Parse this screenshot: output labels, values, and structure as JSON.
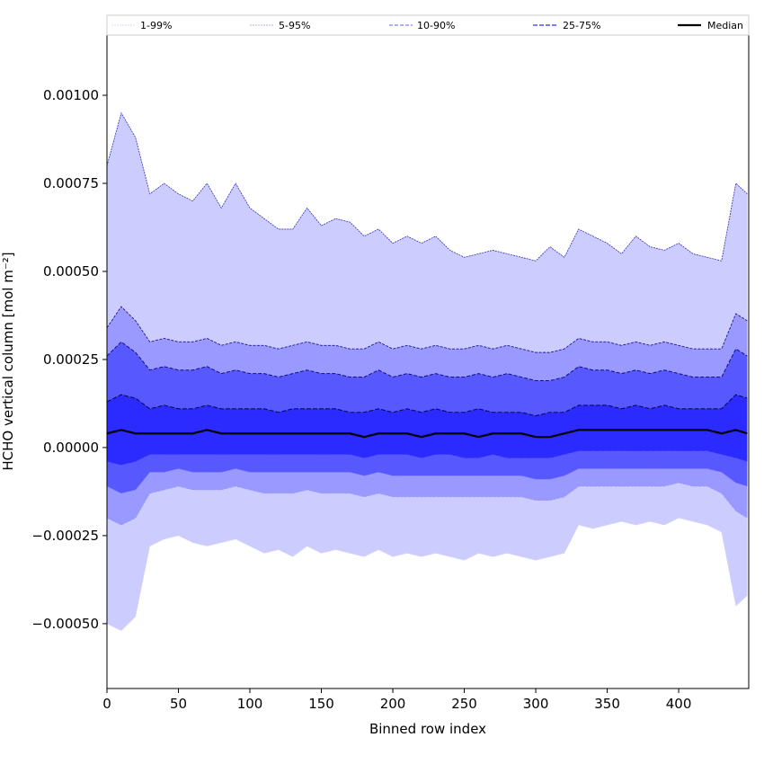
{
  "chart_data": {
    "type": "area",
    "title": "",
    "xlabel": "Binned row index",
    "ylabel": "HCHO vertical column [mol m⁻²]",
    "xlim": [
      0,
      449
    ],
    "ylim": [
      -0.000684,
      0.001171
    ],
    "xticks": [
      0,
      50,
      100,
      150,
      200,
      250,
      300,
      350,
      400
    ],
    "xtick_labels": [
      "0",
      "50",
      "100",
      "150",
      "200",
      "250",
      "300",
      "350",
      "400"
    ],
    "yticks": [
      -0.0005,
      -0.00025,
      0,
      0.00025,
      0.0005,
      0.00075,
      0.001
    ],
    "ytick_labels": [
      "−0.00050",
      "−0.00025",
      "0.00000",
      "0.00025",
      "0.00050",
      "0.00075",
      "0.00100"
    ],
    "legend": {
      "placement": "top",
      "entries": [
        {
          "label": "1-99%",
          "color": "#d8d8f4"
        },
        {
          "label": "5-95%",
          "color": "#b0b0e8"
        },
        {
          "label": "10-90%",
          "color": "#8080ee"
        },
        {
          "label": "25-75%",
          "color": "#5050f0"
        },
        {
          "label": "Median",
          "color": "#000000"
        }
      ]
    },
    "bands": [
      {
        "name": "1-99%",
        "lower": "p1",
        "upper": "p99",
        "fill": "#ccccff"
      },
      {
        "name": "5-95%",
        "lower": "p5",
        "upper": "p95",
        "fill": "#9999ff"
      },
      {
        "name": "10-90%",
        "lower": "p10",
        "upper": "p90",
        "fill": "#5858ff"
      },
      {
        "name": "25-75%",
        "lower": "p25",
        "upper": "p75",
        "fill": "#2b2bff"
      }
    ],
    "x": [
      0,
      10,
      20,
      30,
      40,
      50,
      60,
      70,
      80,
      90,
      100,
      110,
      120,
      130,
      140,
      150,
      160,
      170,
      180,
      190,
      200,
      210,
      220,
      230,
      240,
      250,
      260,
      270,
      280,
      290,
      300,
      310,
      320,
      330,
      340,
      350,
      360,
      370,
      380,
      390,
      400,
      410,
      420,
      430,
      440,
      448
    ],
    "series": {
      "p99": [
        0.0008,
        0.00095,
        0.00088,
        0.00072,
        0.00075,
        0.00072,
        0.0007,
        0.00075,
        0.00068,
        0.00075,
        0.00068,
        0.00065,
        0.00062,
        0.00062,
        0.00068,
        0.00063,
        0.00065,
        0.00064,
        0.0006,
        0.00062,
        0.00058,
        0.0006,
        0.00058,
        0.0006,
        0.00056,
        0.00054,
        0.00055,
        0.00056,
        0.00055,
        0.00054,
        0.00053,
        0.00057,
        0.00054,
        0.00062,
        0.0006,
        0.00058,
        0.00055,
        0.0006,
        0.00057,
        0.00056,
        0.00058,
        0.00055,
        0.00054,
        0.00053,
        0.00075,
        0.00072
      ],
      "p95": [
        0.00034,
        0.0004,
        0.00036,
        0.0003,
        0.00031,
        0.0003,
        0.0003,
        0.00031,
        0.00029,
        0.0003,
        0.00029,
        0.00029,
        0.00028,
        0.00029,
        0.0003,
        0.00029,
        0.00029,
        0.00028,
        0.00028,
        0.0003,
        0.00028,
        0.00029,
        0.00028,
        0.00029,
        0.00028,
        0.00028,
        0.00029,
        0.00028,
        0.00029,
        0.00028,
        0.00027,
        0.00027,
        0.00028,
        0.00031,
        0.0003,
        0.0003,
        0.00029,
        0.0003,
        0.00029,
        0.0003,
        0.00029,
        0.00028,
        0.00028,
        0.00028,
        0.00038,
        0.00036
      ],
      "p90": [
        0.00026,
        0.0003,
        0.00027,
        0.00022,
        0.00023,
        0.00022,
        0.00022,
        0.00023,
        0.00021,
        0.00022,
        0.00021,
        0.00021,
        0.0002,
        0.00021,
        0.00022,
        0.00021,
        0.00021,
        0.0002,
        0.0002,
        0.00022,
        0.0002,
        0.00021,
        0.0002,
        0.00021,
        0.0002,
        0.0002,
        0.00021,
        0.0002,
        0.00021,
        0.0002,
        0.00019,
        0.00019,
        0.0002,
        0.00023,
        0.00022,
        0.00022,
        0.00021,
        0.00022,
        0.00021,
        0.00022,
        0.00021,
        0.0002,
        0.0002,
        0.0002,
        0.00028,
        0.00026
      ],
      "p75": [
        0.00013,
        0.00015,
        0.00014,
        0.00011,
        0.00012,
        0.00011,
        0.00011,
        0.00012,
        0.00011,
        0.00011,
        0.00011,
        0.00011,
        0.0001,
        0.00011,
        0.00011,
        0.00011,
        0.00011,
        0.0001,
        0.0001,
        0.00011,
        0.0001,
        0.00011,
        0.0001,
        0.00011,
        0.0001,
        0.0001,
        0.00011,
        0.0001,
        0.0001,
        0.0001,
        9e-05,
        0.0001,
        0.0001,
        0.00012,
        0.00012,
        0.00012,
        0.00011,
        0.00012,
        0.00011,
        0.00012,
        0.00011,
        0.00011,
        0.00011,
        0.00011,
        0.00015,
        0.00014
      ],
      "median": [
        4e-05,
        5e-05,
        4e-05,
        4e-05,
        4e-05,
        4e-05,
        4e-05,
        5e-05,
        4e-05,
        4e-05,
        4e-05,
        4e-05,
        4e-05,
        4e-05,
        4e-05,
        4e-05,
        4e-05,
        4e-05,
        3e-05,
        4e-05,
        4e-05,
        4e-05,
        3e-05,
        4e-05,
        4e-05,
        4e-05,
        3e-05,
        4e-05,
        4e-05,
        4e-05,
        3e-05,
        3e-05,
        4e-05,
        5e-05,
        5e-05,
        5e-05,
        5e-05,
        5e-05,
        5e-05,
        5e-05,
        5e-05,
        5e-05,
        5e-05,
        4e-05,
        5e-05,
        4e-05
      ],
      "p25": [
        -4e-05,
        -5e-05,
        -4e-05,
        -2e-05,
        -2e-05,
        -2e-05,
        -2e-05,
        -2e-05,
        -2e-05,
        -2e-05,
        -2e-05,
        -2e-05,
        -2e-05,
        -2e-05,
        -2e-05,
        -2e-05,
        -2e-05,
        -2e-05,
        -3e-05,
        -2e-05,
        -2e-05,
        -2e-05,
        -3e-05,
        -2e-05,
        -2e-05,
        -3e-05,
        -3e-05,
        -2e-05,
        -3e-05,
        -3e-05,
        -3e-05,
        -3e-05,
        -2e-05,
        -1e-05,
        -1e-05,
        -1e-05,
        -1e-05,
        -1e-05,
        -1e-05,
        -1e-05,
        -1e-05,
        -1e-05,
        -1e-05,
        -2e-05,
        -3e-05,
        -4e-05
      ],
      "p10": [
        -0.00011,
        -0.00013,
        -0.00012,
        -7e-05,
        -7e-05,
        -6e-05,
        -7e-05,
        -7e-05,
        -7e-05,
        -6e-05,
        -7e-05,
        -7e-05,
        -7e-05,
        -7e-05,
        -7e-05,
        -7e-05,
        -7e-05,
        -7e-05,
        -8e-05,
        -7e-05,
        -8e-05,
        -8e-05,
        -8e-05,
        -8e-05,
        -8e-05,
        -8e-05,
        -8e-05,
        -8e-05,
        -8e-05,
        -8e-05,
        -9e-05,
        -9e-05,
        -8e-05,
        -6e-05,
        -6e-05,
        -6e-05,
        -6e-05,
        -6e-05,
        -6e-05,
        -6e-05,
        -6e-05,
        -6e-05,
        -6e-05,
        -7e-05,
        -0.0001,
        -0.00011
      ],
      "p5": [
        -0.0002,
        -0.00022,
        -0.0002,
        -0.00013,
        -0.00012,
        -0.00011,
        -0.00012,
        -0.00012,
        -0.00012,
        -0.00011,
        -0.00012,
        -0.00013,
        -0.00013,
        -0.00013,
        -0.00012,
        -0.00013,
        -0.00013,
        -0.00013,
        -0.00014,
        -0.00013,
        -0.00014,
        -0.00014,
        -0.00014,
        -0.00014,
        -0.00014,
        -0.00014,
        -0.00014,
        -0.00014,
        -0.00014,
        -0.00014,
        -0.00015,
        -0.00015,
        -0.00014,
        -0.00011,
        -0.00011,
        -0.00011,
        -0.00011,
        -0.00011,
        -0.00011,
        -0.00011,
        -0.0001,
        -0.00011,
        -0.00011,
        -0.00013,
        -0.00018,
        -0.0002
      ],
      "p1": [
        -0.0005,
        -0.00052,
        -0.00048,
        -0.00028,
        -0.00026,
        -0.00025,
        -0.00027,
        -0.00028,
        -0.00027,
        -0.00026,
        -0.00028,
        -0.0003,
        -0.00029,
        -0.00031,
        -0.00028,
        -0.0003,
        -0.00029,
        -0.0003,
        -0.00031,
        -0.00029,
        -0.00031,
        -0.0003,
        -0.00031,
        -0.0003,
        -0.00031,
        -0.00032,
        -0.0003,
        -0.00031,
        -0.0003,
        -0.00031,
        -0.00032,
        -0.00031,
        -0.0003,
        -0.00022,
        -0.00023,
        -0.00022,
        -0.00021,
        -0.00022,
        -0.00021,
        -0.00022,
        -0.0002,
        -0.00021,
        -0.00022,
        -0.00024,
        -0.00045,
        -0.00042
      ]
    },
    "lines": [
      {
        "key": "p99",
        "color": "#3030c0",
        "dash": "2,1",
        "width": 0.8
      },
      {
        "key": "p1",
        "color": "#d8d8f4",
        "dash": "2,1",
        "width": 0.6
      },
      {
        "key": "p95",
        "color": "#1a1a90",
        "dash": "3,1.5",
        "width": 0.9
      },
      {
        "key": "p5",
        "color": "#9a9af0",
        "dash": "3,1.5",
        "width": 0.6
      },
      {
        "key": "p90",
        "color": "#10107a",
        "dash": "4,2",
        "width": 1
      },
      {
        "key": "p10",
        "color": "#7a7af0",
        "dash": "4,2",
        "width": 0.6
      },
      {
        "key": "p75",
        "color": "#0a0a60",
        "dash": "5,2",
        "width": 1.1
      },
      {
        "key": "p25",
        "color": "#5050f0",
        "dash": "5,2",
        "width": 0.6
      },
      {
        "key": "median",
        "color": "#000000",
        "dash": "",
        "width": 2.2
      }
    ]
  }
}
